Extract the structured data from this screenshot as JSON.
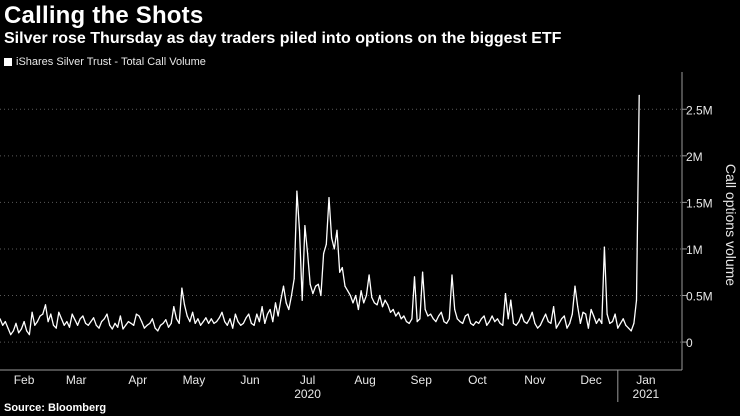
{
  "title": "Calling the Shots",
  "subtitle": "Silver rose Thursday as day traders piled into options on the biggest ETF",
  "legend": {
    "label": "iShares Silver Trust - Total Call Volume"
  },
  "source": "Source: Bloomberg",
  "colors": {
    "background": "#000000",
    "line": "#ffffff",
    "grid": "#5a5a5a",
    "axis": "#9a9a9a"
  },
  "chart_data": {
    "type": "line",
    "title": "Calling the Shots",
    "ylabel": "Call options volume",
    "ylim": [
      -0.3,
      2.9
    ],
    "xlim": [
      0,
      255
    ],
    "yticks": [
      {
        "value": 0,
        "label": "0"
      },
      {
        "value": 0.5,
        "label": "0.5M"
      },
      {
        "value": 1,
        "label": "1M"
      },
      {
        "value": 1.5,
        "label": "1.5M"
      },
      {
        "value": 2,
        "label": "2M"
      },
      {
        "value": 2.5,
        "label": "2.5M"
      }
    ],
    "xticks": [
      {
        "value": 9,
        "label": "Feb"
      },
      {
        "value": 28.5,
        "label": "Mar"
      },
      {
        "value": 51.5,
        "label": "Apr"
      },
      {
        "value": 72.5,
        "label": "May"
      },
      {
        "value": 93.5,
        "label": "Jun"
      },
      {
        "value": 115,
        "label": "Jul"
      },
      {
        "value": 136.5,
        "label": "Aug"
      },
      {
        "value": 157.5,
        "label": "Sep"
      },
      {
        "value": 178.5,
        "label": "Oct"
      },
      {
        "value": 200,
        "label": "Nov"
      },
      {
        "value": 221,
        "label": "Dec"
      },
      {
        "value": 241.5,
        "label": "Jan"
      }
    ],
    "year_labels": [
      {
        "value": 115,
        "label": "2020"
      },
      {
        "value": 241.5,
        "label": "2021"
      }
    ],
    "year_separator": 231,
    "series": [
      {
        "name": "iShares Silver Trust - Total Call Volume",
        "unit": "millions of contracts",
        "values": [
          0.25,
          0.18,
          0.22,
          0.15,
          0.08,
          0.12,
          0.2,
          0.1,
          0.14,
          0.22,
          0.12,
          0.08,
          0.32,
          0.18,
          0.22,
          0.28,
          0.3,
          0.4,
          0.22,
          0.3,
          0.18,
          0.15,
          0.32,
          0.25,
          0.18,
          0.22,
          0.16,
          0.3,
          0.24,
          0.18,
          0.25,
          0.28,
          0.2,
          0.18,
          0.22,
          0.26,
          0.18,
          0.15,
          0.22,
          0.25,
          0.3,
          0.18,
          0.14,
          0.2,
          0.16,
          0.28,
          0.14,
          0.18,
          0.22,
          0.2,
          0.18,
          0.3,
          0.28,
          0.22,
          0.15,
          0.18,
          0.2,
          0.25,
          0.15,
          0.12,
          0.18,
          0.2,
          0.24,
          0.16,
          0.2,
          0.38,
          0.25,
          0.2,
          0.58,
          0.4,
          0.28,
          0.22,
          0.32,
          0.2,
          0.25,
          0.18,
          0.22,
          0.26,
          0.2,
          0.25,
          0.2,
          0.22,
          0.26,
          0.32,
          0.22,
          0.18,
          0.25,
          0.15,
          0.3,
          0.22,
          0.18,
          0.2,
          0.26,
          0.3,
          0.2,
          0.18,
          0.3,
          0.22,
          0.38,
          0.2,
          0.3,
          0.35,
          0.22,
          0.42,
          0.28,
          0.45,
          0.6,
          0.42,
          0.35,
          0.5,
          0.68,
          1.62,
          1.2,
          0.45,
          1.25,
          0.95,
          0.62,
          0.52,
          0.6,
          0.62,
          0.5,
          0.95,
          1.05,
          1.55,
          1.12,
          1.0,
          1.2,
          0.75,
          0.8,
          0.6,
          0.55,
          0.5,
          0.42,
          0.5,
          0.35,
          0.55,
          0.42,
          0.5,
          0.72,
          0.48,
          0.42,
          0.4,
          0.5,
          0.38,
          0.45,
          0.4,
          0.32,
          0.35,
          0.28,
          0.32,
          0.25,
          0.28,
          0.22,
          0.2,
          0.25,
          0.7,
          0.22,
          0.25,
          0.75,
          0.35,
          0.28,
          0.3,
          0.25,
          0.22,
          0.28,
          0.32,
          0.22,
          0.2,
          0.25,
          0.72,
          0.35,
          0.25,
          0.22,
          0.2,
          0.28,
          0.3,
          0.2,
          0.18,
          0.22,
          0.2,
          0.25,
          0.28,
          0.18,
          0.22,
          0.28,
          0.22,
          0.25,
          0.2,
          0.18,
          0.52,
          0.25,
          0.45,
          0.2,
          0.18,
          0.22,
          0.3,
          0.22,
          0.2,
          0.25,
          0.32,
          0.2,
          0.15,
          0.18,
          0.24,
          0.3,
          0.22,
          0.2,
          0.38,
          0.15,
          0.2,
          0.25,
          0.28,
          0.15,
          0.2,
          0.3,
          0.6,
          0.38,
          0.2,
          0.32,
          0.3,
          0.15,
          0.35,
          0.28,
          0.2,
          0.25,
          0.2,
          1.02,
          0.3,
          0.2,
          0.22,
          0.3,
          0.15,
          0.2,
          0.25,
          0.18,
          0.15,
          0.12,
          0.2,
          0.45,
          2.65
        ]
      }
    ],
    "grid": true
  }
}
